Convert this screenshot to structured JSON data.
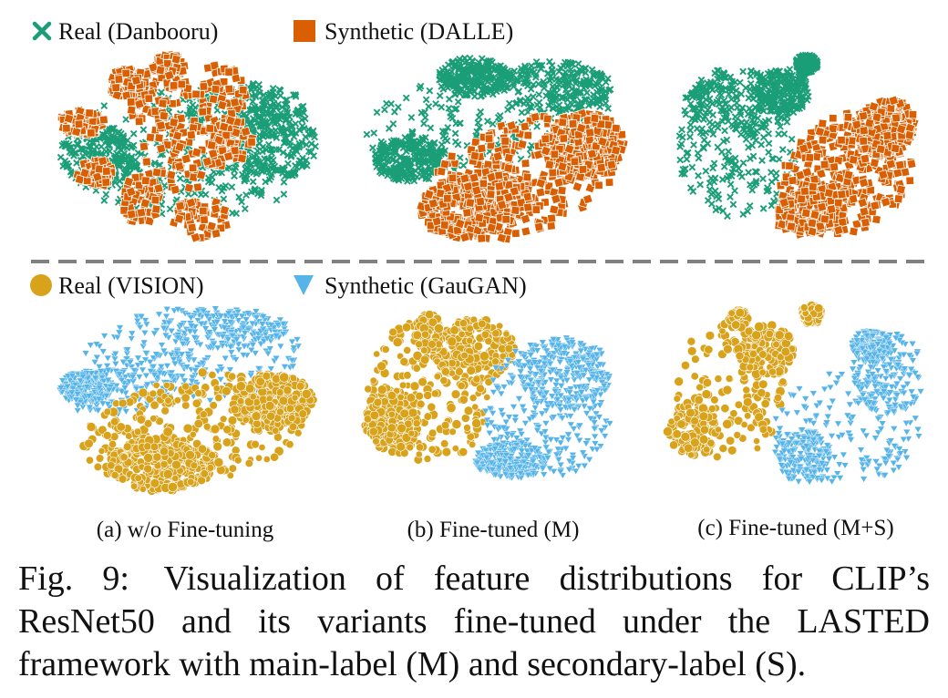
{
  "caption": {
    "label": "Fig. 9:",
    "text": "Visualization of feature distributions for CLIP’s ResNet50 and its variants fine-tuned under the LASTED framework with main-label (M) and secondary-label (S)."
  },
  "colors": {
    "real_danbooru": "#1b9e77",
    "synthetic_dalle": "#d95f02",
    "real_vision": "#d9a21b",
    "synthetic_gaugan": "#56b4e9",
    "divider": "#808080"
  },
  "chart_data": {
    "type": "scatter",
    "description_kind": "t-SNE feature embeddings (no axes)",
    "rows": [
      {
        "legend": [
          {
            "label": "Real (Danbooru)",
            "marker": "x",
            "color": "#1b9e77"
          },
          {
            "label": "Synthetic (DALLE)",
            "marker": "square",
            "color": "#d95f02"
          }
        ]
      },
      {
        "legend": [
          {
            "label": "Real (VISION)",
            "marker": "circle",
            "color": "#d9a21b"
          },
          {
            "label": "Synthetic (GauGAN)",
            "marker": "triangle-down",
            "color": "#56b4e9"
          }
        ]
      }
    ],
    "columns": [
      {
        "label": "(a) w/o Fine-tuning"
      },
      {
        "label": "(b) Fine-tuned (M)"
      },
      {
        "label": "(c) Fine-tuned (M+S)"
      }
    ]
  }
}
